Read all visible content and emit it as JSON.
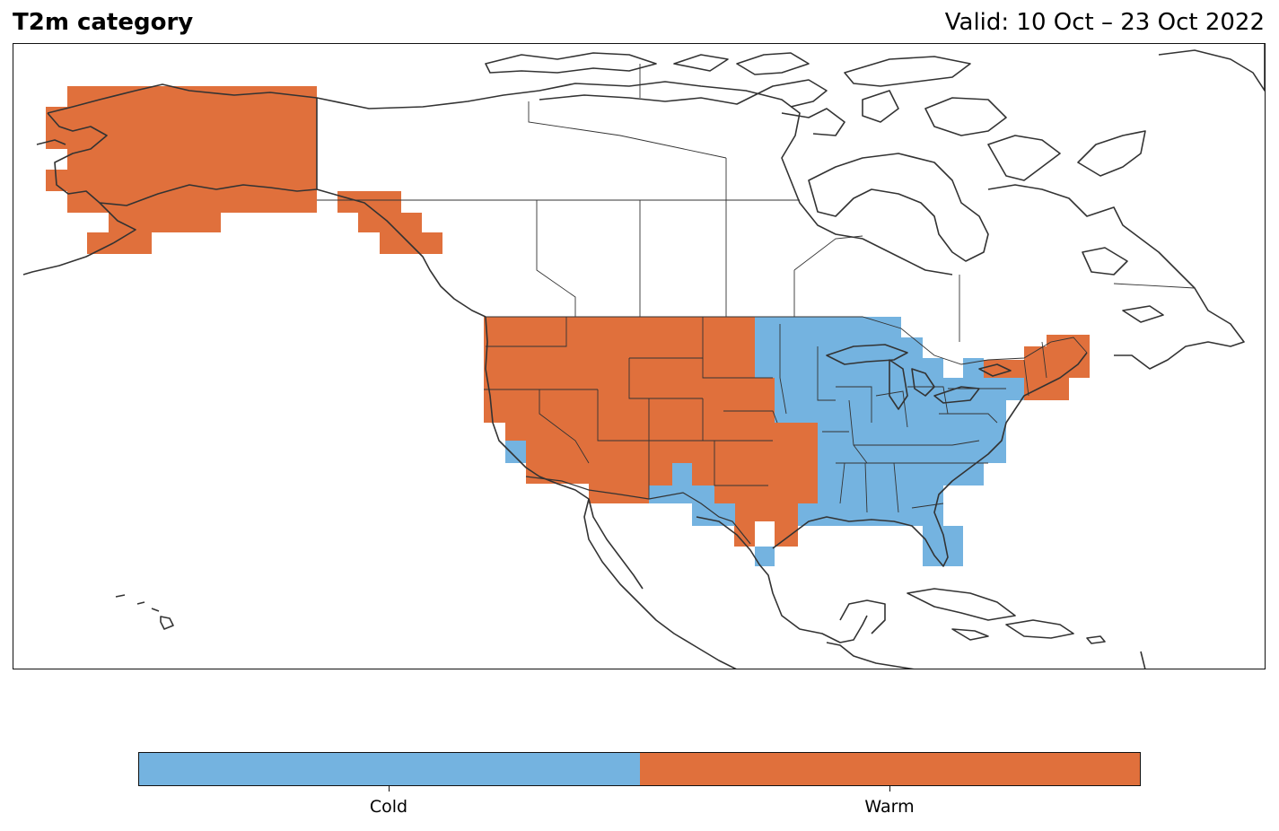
{
  "header": {
    "title": "T2m category",
    "valid": "Valid: 10 Oct – 23 Oct 2022"
  },
  "legend": {
    "categories": [
      {
        "label": "Cold",
        "color": "#74b3e0"
      },
      {
        "label": "Warm",
        "color": "#e0703c"
      }
    ]
  },
  "colors": {
    "cold": "#74b3e0",
    "warm": "#e0703c",
    "coastline": "#333333"
  },
  "map": {
    "region": "North America",
    "projection": "PlateCarree",
    "regions_by_category": {
      "Warm": [
        "Alaska",
        "Southeast Alaska",
        "Washington",
        "Oregon",
        "California",
        "Nevada",
        "Idaho",
        "Montana",
        "Wyoming",
        "Utah",
        "Colorado",
        "Arizona",
        "New Mexico",
        "North Dakota",
        "South Dakota",
        "Nebraska",
        "Kansas",
        "Oklahoma",
        "Texas",
        "New England"
      ],
      "Cold": [
        "Southern California coast",
        "Far west Texas",
        "Texas Gulf coast",
        "Minnesota",
        "Iowa",
        "Missouri",
        "Arkansas",
        "Louisiana",
        "Wisconsin",
        "Michigan",
        "Illinois",
        "Indiana",
        "Ohio",
        "Kentucky",
        "Tennessee",
        "Mississippi",
        "Alabama",
        "Georgia",
        "Florida",
        "South Carolina",
        "North Carolina",
        "Virginia",
        "West Virginia",
        "Pennsylvania",
        "New York",
        "New Jersey",
        "Maryland",
        "Delaware"
      ]
    }
  }
}
